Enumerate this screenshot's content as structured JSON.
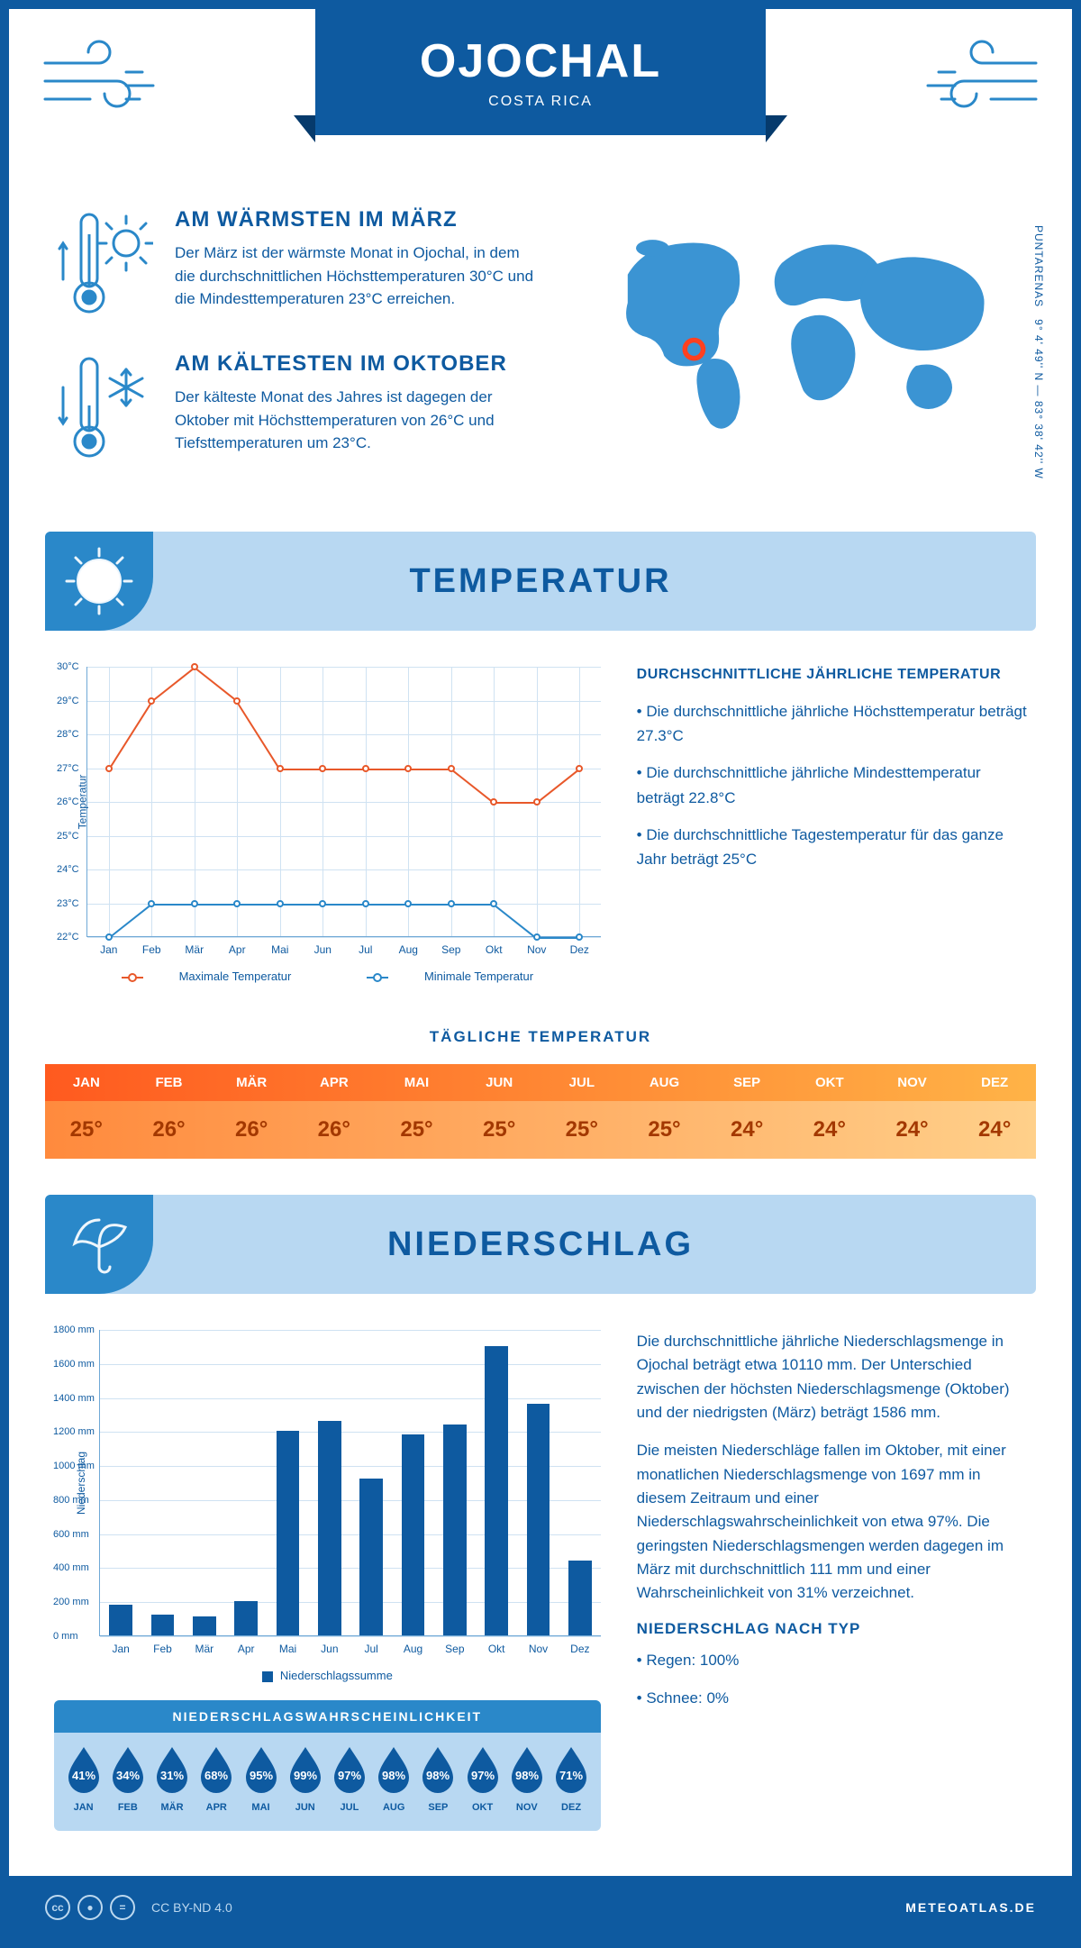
{
  "header": {
    "title": "OJOCHAL",
    "subtitle": "COSTA RICA"
  },
  "coords": {
    "text": "9° 4' 49'' N — 83° 38' 42'' W",
    "region": "PUNTARENAS"
  },
  "facts": {
    "warm": {
      "title": "AM WÄRMSTEN IM MÄRZ",
      "text": "Der März ist der wärmste Monat in Ojochal, in dem die durchschnittlichen Höchsttemperaturen 30°C und die Mindesttemperaturen 23°C erreichen."
    },
    "cold": {
      "title": "AM KÄLTESTEN IM OKTOBER",
      "text": "Der kälteste Monat des Jahres ist dagegen der Oktober mit Höchsttemperaturen von 26°C und Tiefsttemperaturen um 23°C."
    }
  },
  "sections": {
    "temperature": "TEMPERATUR",
    "precipitation": "NIEDERSCHLAG"
  },
  "months": [
    "Jan",
    "Feb",
    "Mär",
    "Apr",
    "Mai",
    "Jun",
    "Jul",
    "Aug",
    "Sep",
    "Okt",
    "Nov",
    "Dez"
  ],
  "months_upper": [
    "JAN",
    "FEB",
    "MÄR",
    "APR",
    "MAI",
    "JUN",
    "JUL",
    "AUG",
    "SEP",
    "OKT",
    "NOV",
    "DEZ"
  ],
  "temp_chart": {
    "type": "line",
    "ylabel": "Temperatur",
    "ylim": [
      22,
      30
    ],
    "ytick_step": 1,
    "max_color": "#e8582a",
    "min_color": "#2a88c9",
    "grid_color": "#cfe2f2",
    "axis_color": "#6fa8d6",
    "max_series": [
      27,
      29,
      30,
      29,
      27,
      27,
      27,
      27,
      27,
      26,
      26,
      27
    ],
    "min_series": [
      22,
      23,
      23,
      23,
      23,
      23,
      23,
      23,
      23,
      23,
      22,
      22
    ],
    "legend_max": "Maximale Temperatur",
    "legend_min": "Minimale Temperatur"
  },
  "temp_summary": {
    "title": "DURCHSCHNITTLICHE JÄHRLICHE TEMPERATUR",
    "b1": "• Die durchschnittliche jährliche Höchsttemperatur beträgt 27.3°C",
    "b2": "• Die durchschnittliche jährliche Mindesttemperatur beträgt 22.8°C",
    "b3": "• Die durchschnittliche Tagestemperatur für das ganze Jahr beträgt 25°C"
  },
  "daily_temp": {
    "title": "TÄGLICHE TEMPERATUR",
    "values": [
      "25°",
      "26°",
      "26°",
      "26°",
      "25°",
      "25°",
      "25°",
      "25°",
      "24°",
      "24°",
      "24°",
      "24°"
    ],
    "head_grad_start": "#ff5a1f",
    "head_grad_end": "#ffb347",
    "row_grad_start": "#ff8a3d",
    "row_grad_end": "#ffd08a",
    "text_color": "#a33800"
  },
  "precip_chart": {
    "type": "bar",
    "ylabel": "Niederschlag",
    "ylim": [
      0,
      1800
    ],
    "ytick_step": 200,
    "bar_color": "#0e5aa0",
    "grid_color": "#cfe2f2",
    "axis_color": "#6fa8d6",
    "values": [
      180,
      120,
      111,
      200,
      1200,
      1260,
      920,
      1180,
      1240,
      1697,
      1360,
      440
    ],
    "legend": "Niederschlagssumme"
  },
  "precip_text": {
    "p1": "Die durchschnittliche jährliche Niederschlagsmenge in Ojochal beträgt etwa 10110 mm. Der Unterschied zwischen der höchsten Niederschlagsmenge (Oktober) und der niedrigsten (März) beträgt 1586 mm.",
    "p2": "Die meisten Niederschläge fallen im Oktober, mit einer monatlichen Niederschlagsmenge von 1697 mm in diesem Zeitraum und einer Niederschlagswahrscheinlichkeit von etwa 97%. Die geringsten Niederschlagsmengen werden dagegen im März mit durchschnittlich 111 mm und einer Wahrscheinlichkeit von 31% verzeichnet.",
    "type_title": "NIEDERSCHLAG NACH TYP",
    "type_rain": "• Regen: 100%",
    "type_snow": "• Schnee: 0%"
  },
  "prob": {
    "title": "NIEDERSCHLAGSWAHRSCHEINLICHKEIT",
    "values": [
      "41%",
      "34%",
      "31%",
      "68%",
      "95%",
      "99%",
      "97%",
      "98%",
      "98%",
      "97%",
      "98%",
      "71%"
    ],
    "drop_color": "#0e5aa0",
    "bg_color": "#b8d8f2"
  },
  "footer": {
    "license": "CC BY-ND 4.0",
    "brand": "METEOATLAS.DE"
  },
  "colors": {
    "primary": "#0e5aa0",
    "accent": "#2a88c9",
    "light": "#b8d8f2"
  }
}
